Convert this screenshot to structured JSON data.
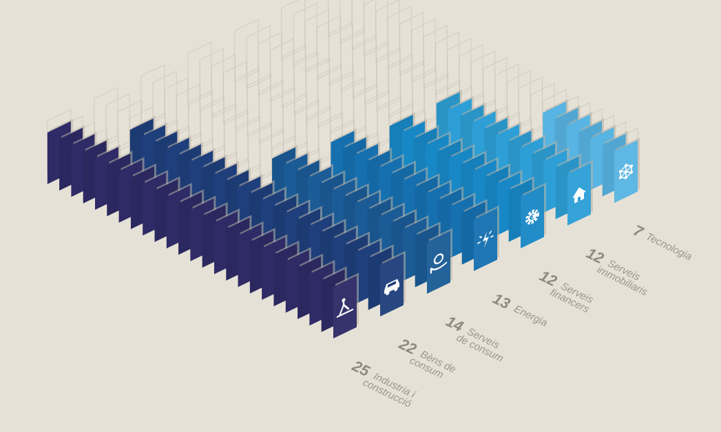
{
  "chart_data": {
    "type": "bar",
    "style": "isometric pictogram stacks",
    "max_units": 25,
    "categories": [
      "Industria i construcció",
      "Bèns de consum",
      "Serveis de consum",
      "Energia",
      "Serveis financers",
      "Serveis immobiliaris",
      "Tecnologia"
    ],
    "values": [
      25,
      22,
      14,
      13,
      12,
      12,
      7
    ],
    "sectors": [
      {
        "value": 25,
        "value_label": "25",
        "label_lines": [
          "Industria i",
          "construcció"
        ],
        "color": "#2e2b66",
        "icon": "crane-icon"
      },
      {
        "value": 22,
        "value_label": "22",
        "label_lines": [
          "Bèns de",
          "consum"
        ],
        "color": "#1f3f7c",
        "icon": "car-icon"
      },
      {
        "value": 14,
        "value_label": "14",
        "label_lines": [
          "Serveis",
          "de consum"
        ],
        "color": "#1b5b96",
        "icon": "hand-coin-icon"
      },
      {
        "value": 13,
        "value_label": "13",
        "label_lines": [
          "Energia"
        ],
        "color": "#1670b0",
        "icon": "lightning-icon"
      },
      {
        "value": 12,
        "value_label": "12",
        "label_lines": [
          "Serveis",
          "financers"
        ],
        "color": "#1887c6",
        "icon": "gear-euro-icon"
      },
      {
        "value": 12,
        "value_label": "12",
        "label_lines": [
          "Serveis",
          "immobiliaris"
        ],
        "color": "#2e9fd6",
        "icon": "house-icon"
      },
      {
        "value": 7,
        "value_label": "7",
        "label_lines": [
          "Tecnologia"
        ],
        "color": "#58b4e2",
        "icon": "network-icon"
      }
    ]
  }
}
